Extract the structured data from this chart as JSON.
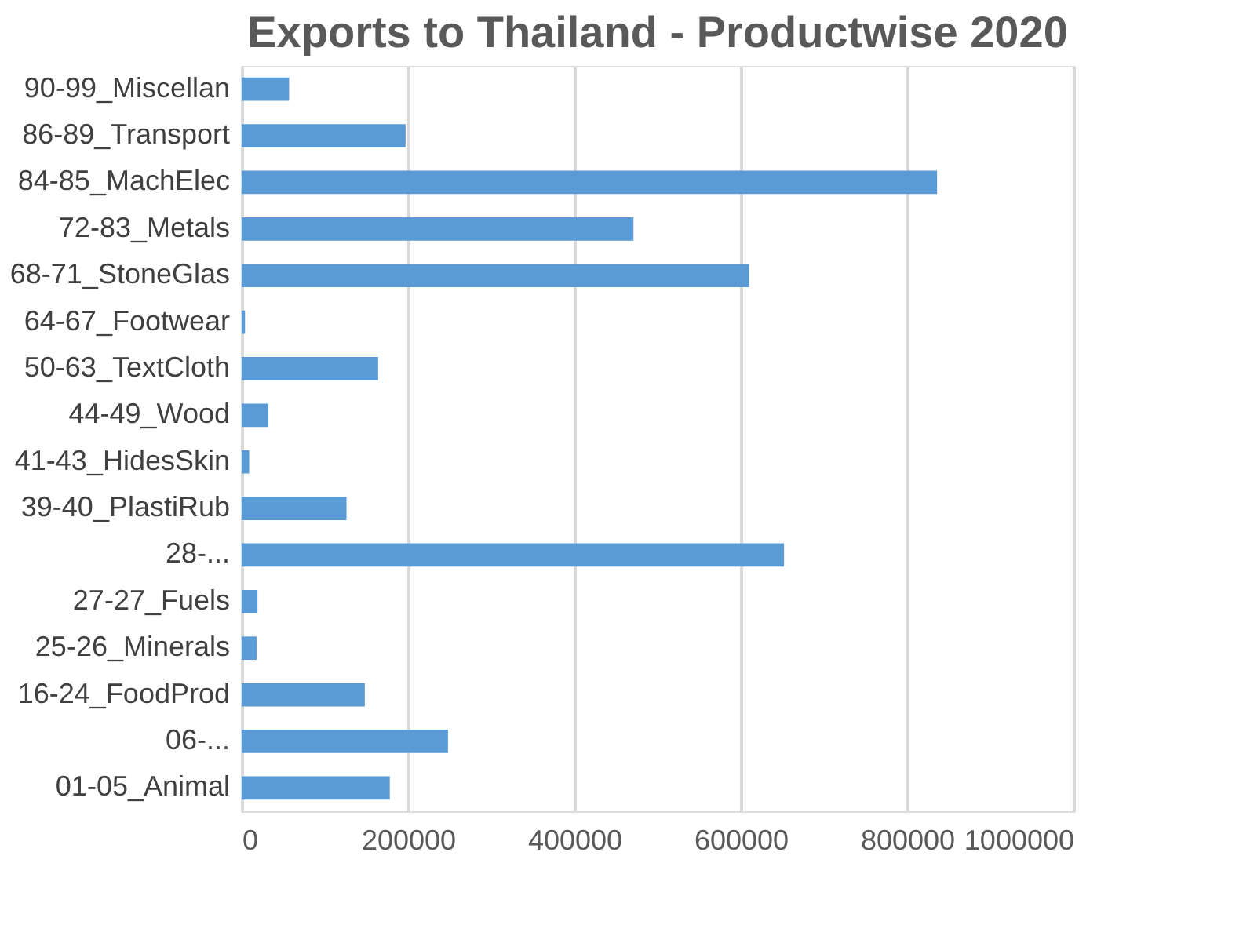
{
  "chart_data": {
    "type": "bar",
    "orientation": "horizontal",
    "title": "Exports to Thailand - Productwise 2020",
    "categories": [
      "90-99_Miscellan",
      "86-89_Transport",
      "84-85_MachElec",
      "72-83_Metals",
      "68-71_StoneGlas",
      "64-67_Footwear",
      "50-63_TextCloth",
      "44-49_Wood",
      "41-43_HidesSkin",
      "39-40_PlastiRub",
      "28-...",
      "27-27_Fuels",
      "25-26_Minerals",
      "16-24_FoodProd",
      "06-...",
      "01-05_Animal"
    ],
    "values": [
      57000,
      197000,
      836000,
      471000,
      610000,
      4000,
      164000,
      32000,
      9000,
      126000,
      652000,
      19000,
      18000,
      148000,
      248000,
      178000
    ],
    "color": "#5b9bd5",
    "xlim": [
      0,
      1000000
    ],
    "xticks": [
      0,
      200000,
      400000,
      600000,
      800000,
      1000000
    ],
    "grid": "x"
  }
}
